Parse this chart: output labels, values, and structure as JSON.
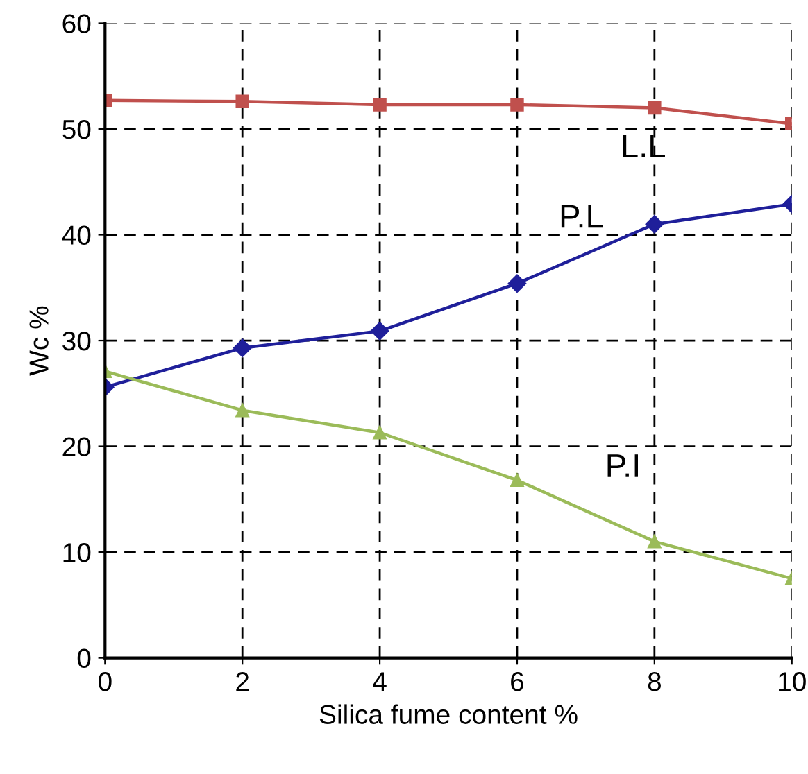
{
  "chart_data": {
    "type": "line",
    "xlabel": "Silica fume content %",
    "ylabel": "Wc %",
    "x": [
      0,
      2,
      4,
      6,
      8,
      10
    ],
    "series": [
      {
        "name": "L.L",
        "color": "#c0504d",
        "marker": "square",
        "values": [
          52.7,
          52.6,
          52.3,
          52.3,
          52.0,
          50.5
        ]
      },
      {
        "name": "P.L",
        "color": "#1f1f9a",
        "marker": "diamond",
        "values": [
          25.6,
          29.3,
          30.9,
          35.4,
          41.0,
          42.9
        ]
      },
      {
        "name": "P.I",
        "color": "#9bbb59",
        "marker": "triangle",
        "values": [
          27.1,
          23.4,
          21.3,
          16.8,
          11.0,
          7.5
        ]
      }
    ],
    "xlim": [
      0,
      10
    ],
    "xticks": [
      0,
      2,
      4,
      6,
      8,
      10
    ],
    "ylim": [
      0,
      60
    ],
    "yticks": [
      0,
      10,
      20,
      30,
      40,
      50,
      60
    ],
    "grid": true,
    "legend": false
  }
}
